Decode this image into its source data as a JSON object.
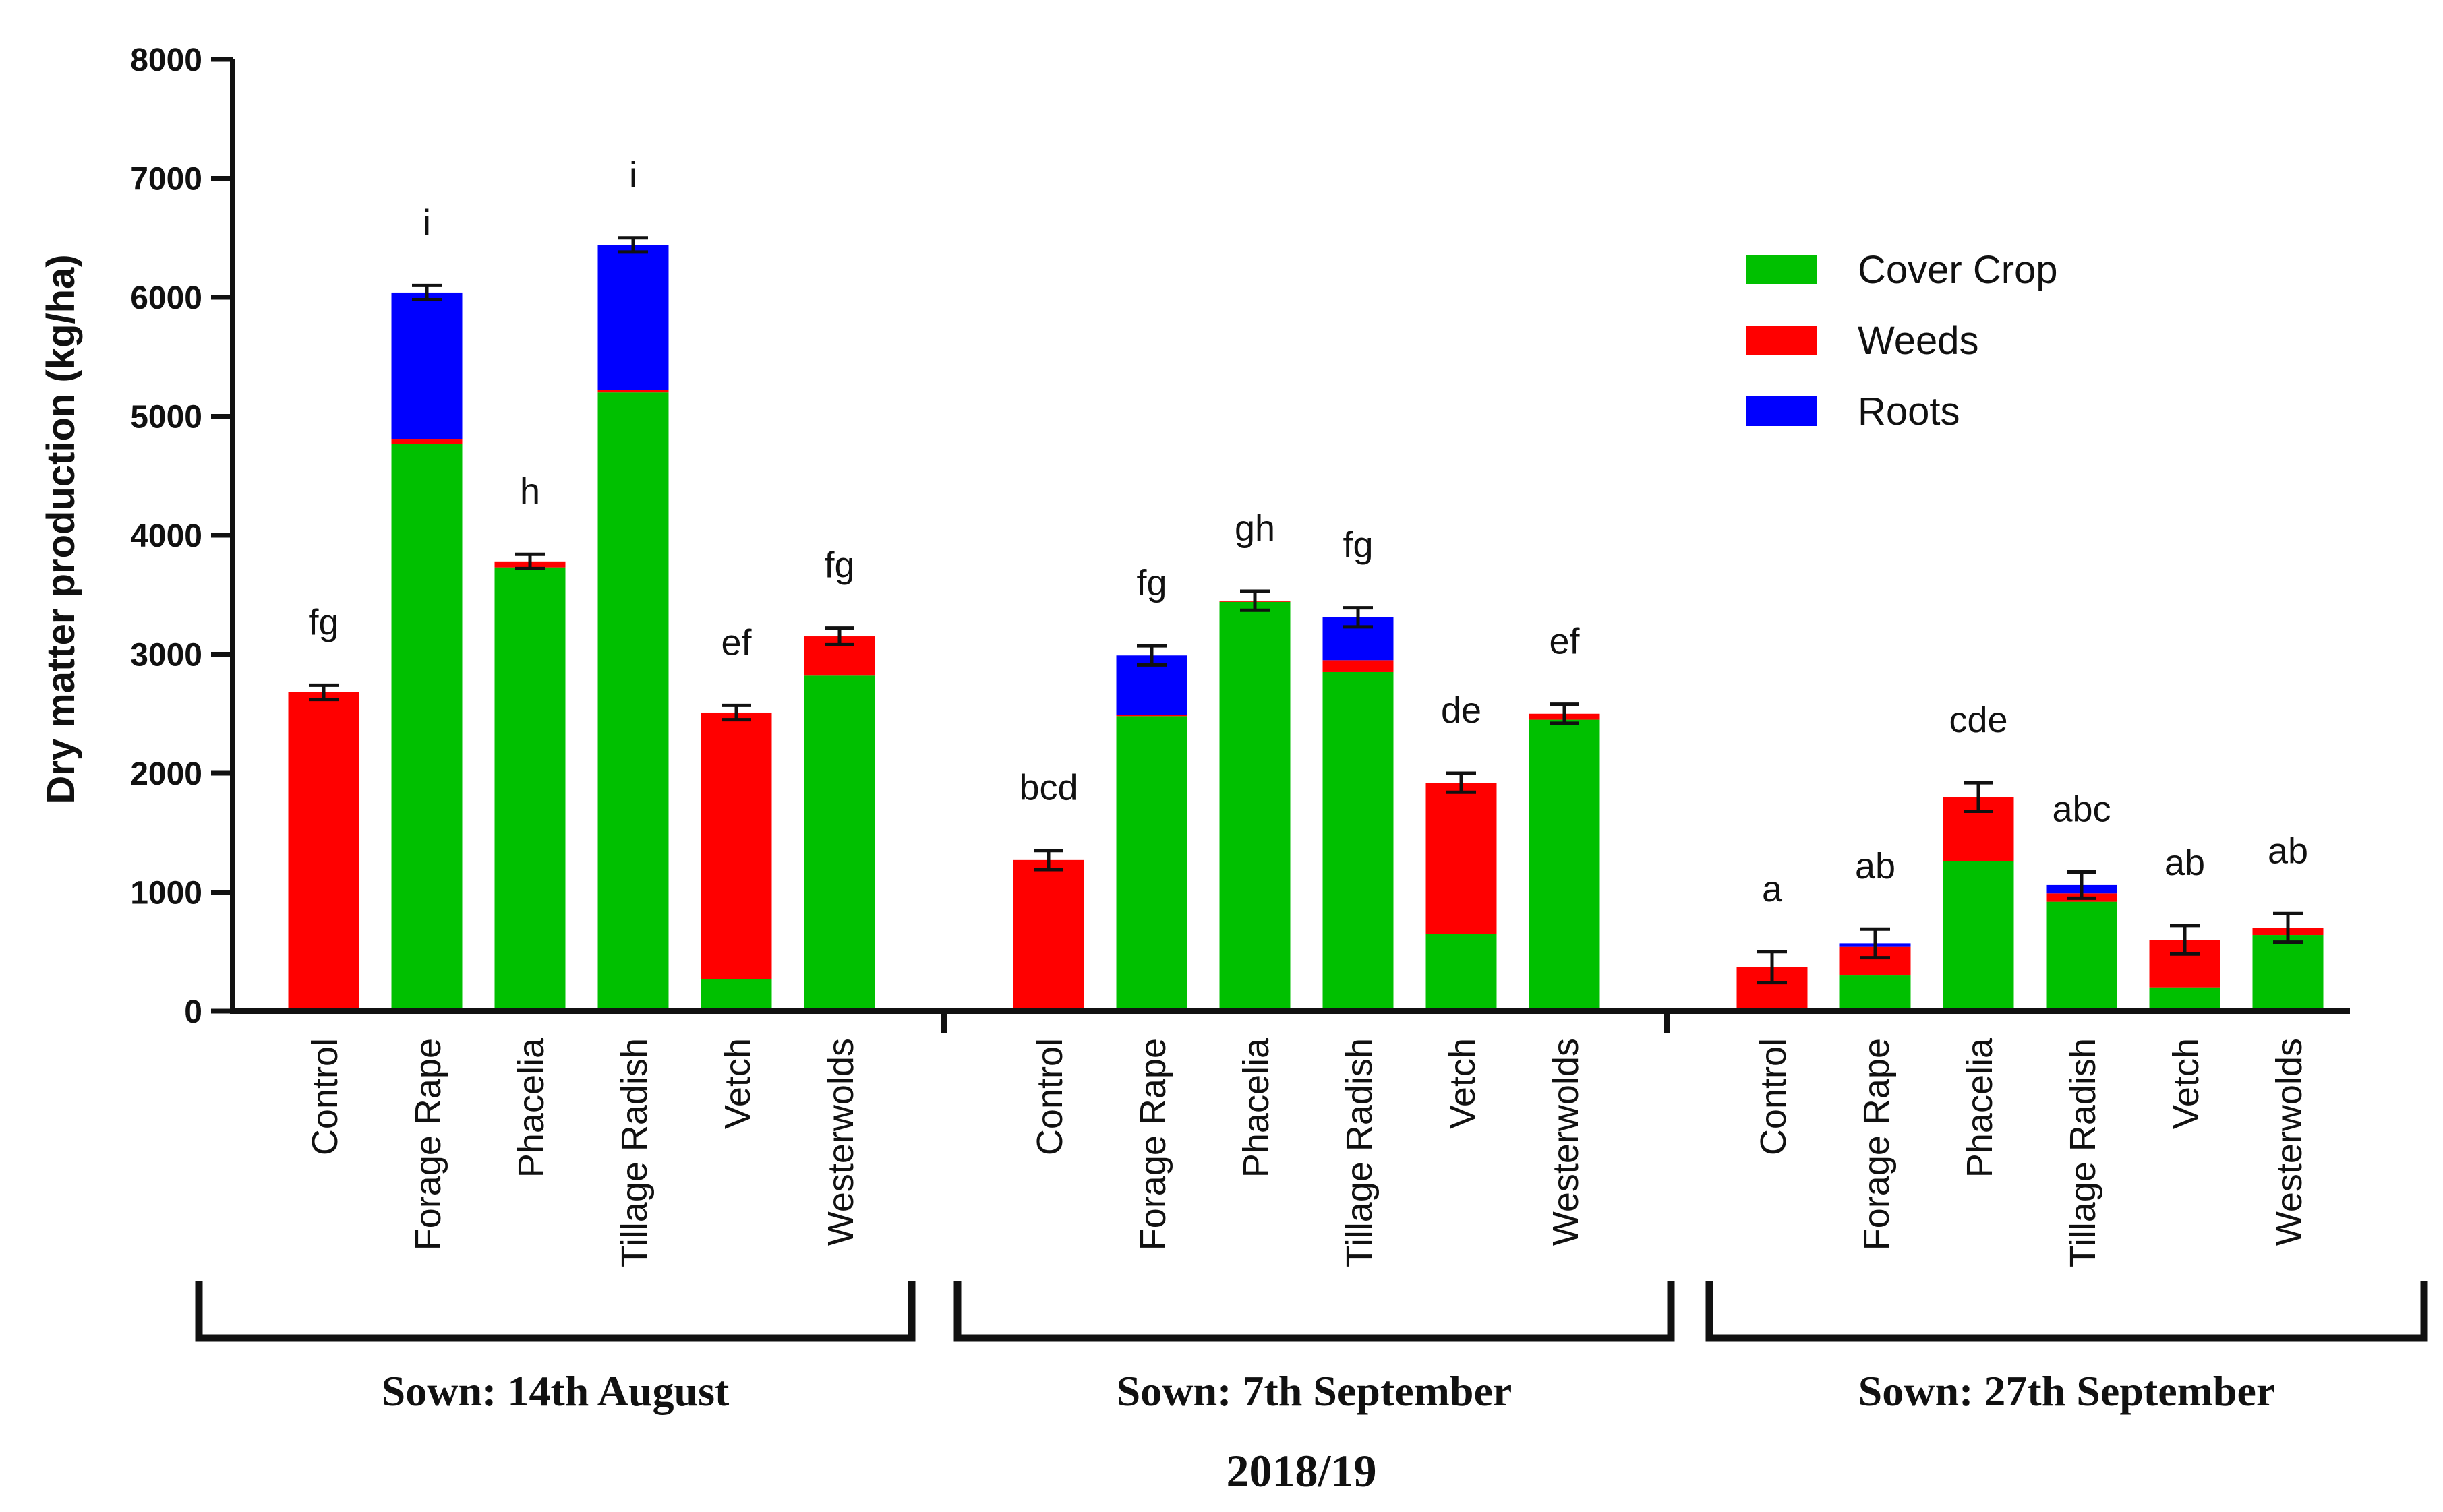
{
  "chart_data": {
    "type": "bar",
    "stacked": true,
    "ylabel": "Dry matter production (kg/ha)",
    "xlabel": "2018/19",
    "ylim": [
      0,
      8000
    ],
    "yticks": [
      0,
      1000,
      2000,
      3000,
      4000,
      5000,
      6000,
      7000,
      8000
    ],
    "legend_position": "top-right",
    "series": [
      {
        "name": "Cover Crop",
        "color": "#00c000"
      },
      {
        "name": "Weeds",
        "color": "#ff0000"
      },
      {
        "name": "Roots",
        "color": "#0000ff"
      }
    ],
    "groups": [
      {
        "label": "Sown: 14th August",
        "bars": [
          {
            "category": "Control",
            "cover": 0,
            "weeds": 2680,
            "roots": 0,
            "error": 60,
            "sig": "fg"
          },
          {
            "category": "Forage Rape",
            "cover": 4770,
            "weeds": 40,
            "roots": 1230,
            "error": 60,
            "sig": "i"
          },
          {
            "category": "Phacelia",
            "cover": 3730,
            "weeds": 50,
            "roots": 0,
            "error": 60,
            "sig": "h"
          },
          {
            "category": "Tillage Radish",
            "cover": 5200,
            "weeds": 20,
            "roots": 1220,
            "error": 60,
            "sig": "i"
          },
          {
            "category": "Vetch",
            "cover": 270,
            "weeds": 2240,
            "roots": 0,
            "error": 60,
            "sig": "ef"
          },
          {
            "category": "Westerwolds",
            "cover": 2820,
            "weeds": 330,
            "roots": 0,
            "error": 70,
            "sig": "fg"
          }
        ]
      },
      {
        "label": "Sown: 7th September",
        "bars": [
          {
            "category": "Control",
            "cover": 0,
            "weeds": 1270,
            "roots": 0,
            "error": 80,
            "sig": "bcd"
          },
          {
            "category": "Forage Rape",
            "cover": 2480,
            "weeds": 10,
            "roots": 500,
            "error": 80,
            "sig": "fg"
          },
          {
            "category": "Phacelia",
            "cover": 3440,
            "weeds": 10,
            "roots": 0,
            "error": 80,
            "sig": "gh"
          },
          {
            "category": "Tillage Radish",
            "cover": 2850,
            "weeds": 100,
            "roots": 360,
            "error": 80,
            "sig": "fg"
          },
          {
            "category": "Vetch",
            "cover": 650,
            "weeds": 1270,
            "roots": 0,
            "error": 80,
            "sig": "de"
          },
          {
            "category": "Westerwolds",
            "cover": 2450,
            "weeds": 50,
            "roots": 0,
            "error": 80,
            "sig": "ef"
          }
        ]
      },
      {
        "label": "Sown: 27th September",
        "bars": [
          {
            "category": "Control",
            "cover": 0,
            "weeds": 370,
            "roots": 0,
            "error": 130,
            "sig": "a"
          },
          {
            "category": "Forage Rape",
            "cover": 300,
            "weeds": 240,
            "roots": 30,
            "error": 120,
            "sig": "ab"
          },
          {
            "category": "Phacelia",
            "cover": 1260,
            "weeds": 540,
            "roots": 0,
            "error": 120,
            "sig": "cde"
          },
          {
            "category": "Tillage Radish",
            "cover": 920,
            "weeds": 70,
            "roots": 70,
            "error": 110,
            "sig": "abc"
          },
          {
            "category": "Vetch",
            "cover": 200,
            "weeds": 400,
            "roots": 0,
            "error": 120,
            "sig": "ab"
          },
          {
            "category": "Westerwolds",
            "cover": 640,
            "weeds": 60,
            "roots": 0,
            "error": 120,
            "sig": "ab"
          }
        ]
      }
    ]
  }
}
